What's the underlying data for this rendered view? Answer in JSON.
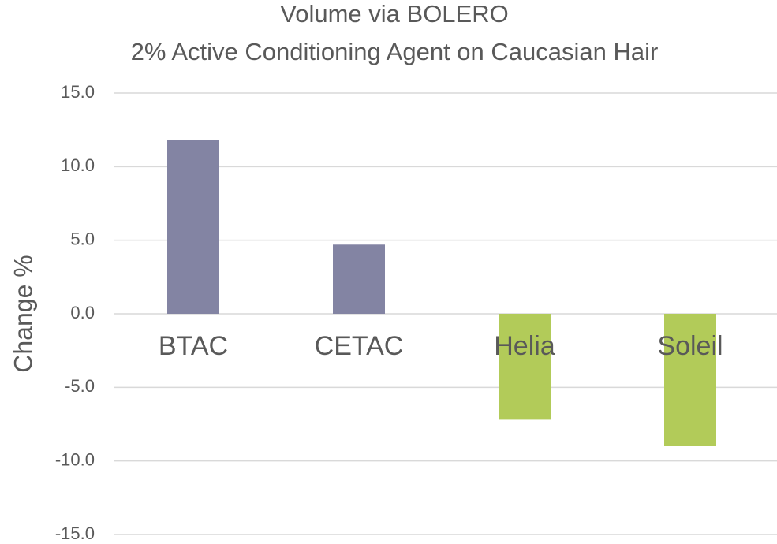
{
  "chart_data": {
    "type": "bar",
    "title": "Volume via BOLERO",
    "subtitle": "2% Active Conditioning Agent on Caucasian Hair",
    "y_label": "Change %",
    "categories": [
      "BTAC",
      "CETAC",
      "Helia",
      "Soleil"
    ],
    "values": [
      11.8,
      4.7,
      -7.2,
      -9.0
    ],
    "colors": [
      "#8384a3",
      "#8384a3",
      "#b2cb59",
      "#b2cb59"
    ],
    "ylim": [
      -15,
      15
    ],
    "yticks": [
      {
        "value": 15,
        "label": "15.0"
      },
      {
        "value": 10,
        "label": "10.0"
      },
      {
        "value": 5,
        "label": "5.0"
      },
      {
        "value": 0,
        "label": "0.0"
      },
      {
        "value": -5,
        "label": "-5.0"
      },
      {
        "value": -10,
        "label": "-10.0"
      },
      {
        "value": -15,
        "label": "-15.0"
      }
    ],
    "grid": true
  }
}
